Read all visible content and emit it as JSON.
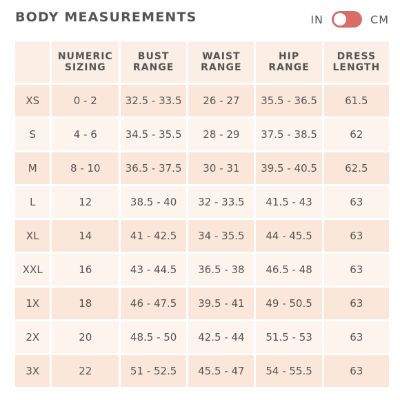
{
  "header": {
    "title": "BODY MEASUREMENTS",
    "unit_left": "IN",
    "unit_right": "CM",
    "toggle_color": "#d96e68"
  },
  "table": {
    "columns": [
      "",
      "NUMERIC SIZING",
      "BUST RANGE",
      "WAIST RANGE",
      "HIP RANGE",
      "DRESS LENGTH"
    ],
    "rows": [
      [
        "XS",
        "0 - 2",
        "32.5 - 33.5",
        "26 - 27",
        "35.5 - 36.5",
        "61.5"
      ],
      [
        "S",
        "4 - 6",
        "34.5 - 35.5",
        "28 - 29",
        "37.5 - 38.5",
        "62"
      ],
      [
        "M",
        "8 - 10",
        "36.5 - 37.5",
        "30 - 31",
        "39.5 - 40.5",
        "62.5"
      ],
      [
        "L",
        "12",
        "38.5 - 40",
        "32 - 33.5",
        "41.5 - 43",
        "63"
      ],
      [
        "XL",
        "14",
        "41 - 42.5",
        "34 - 35.5",
        "44 - 45.5",
        "63"
      ],
      [
        "XXL",
        "16",
        "43 - 44.5",
        "36.5 - 38",
        "46.5 - 48",
        "63"
      ],
      [
        "1X",
        "18",
        "46 - 47.5",
        "39.5 - 41",
        "49 - 50.5",
        "63"
      ],
      [
        "2X",
        "20",
        "48.5 - 50",
        "42.5 - 44",
        "51.5 - 53",
        "63"
      ],
      [
        "3X",
        "22",
        "51 - 52.5",
        "45.5 - 47",
        "54 - 55.5",
        "63"
      ]
    ]
  }
}
